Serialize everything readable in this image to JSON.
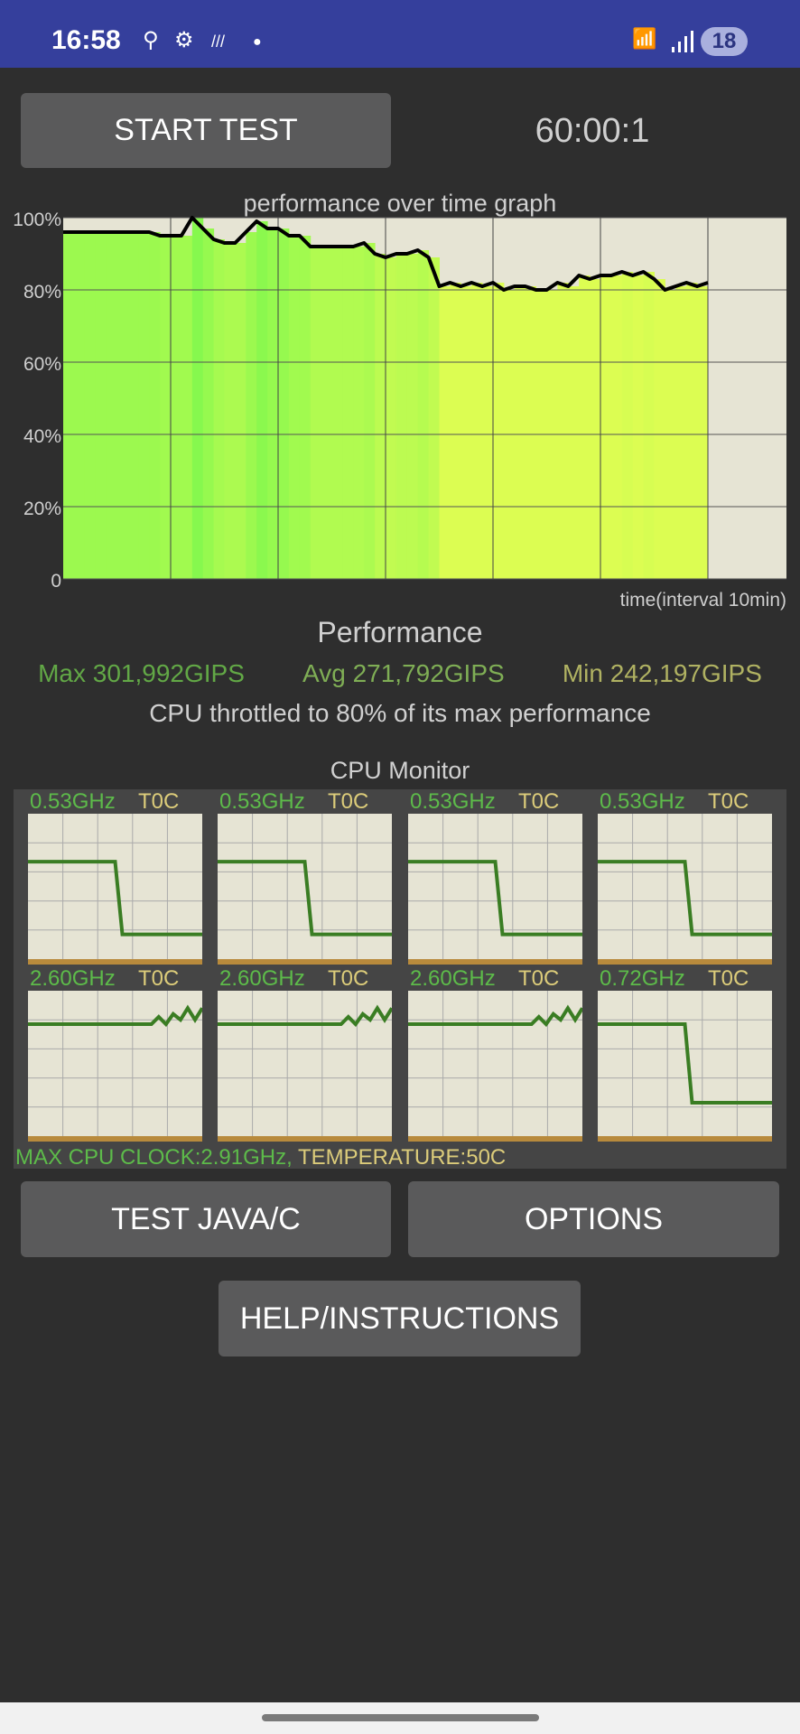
{
  "status_bar": {
    "time": "16:58",
    "icons_left": [
      "location-icon",
      "gear-icon",
      "stripes-icon",
      "dot-icon"
    ],
    "icons_right": [
      "wifi-6-icon",
      "signal-icon"
    ],
    "battery": "18",
    "color": "#353f9c"
  },
  "top": {
    "start_button": "START TEST",
    "timer": "60:00:1"
  },
  "chart_data": {
    "type": "area",
    "title": "performance over time graph",
    "xlabel": "time(interval 10min)",
    "ylabel": "",
    "y_tick_labels": [
      "100%",
      "80%",
      "60%",
      "40%",
      "20%",
      "0"
    ],
    "ylim": [
      0,
      100
    ],
    "xlim_minutes": [
      0,
      70
    ],
    "x_interval_minutes": 10,
    "grid": true,
    "colors": {
      "high": "#86f84e",
      "low": "#dcfd52",
      "background": "#e6e4d4",
      "line": "#000000"
    },
    "x": [
      0,
      1,
      2,
      3,
      4,
      5,
      6,
      7,
      8,
      9,
      10,
      11,
      12,
      13,
      14,
      15,
      16,
      17,
      18,
      19,
      20,
      21,
      22,
      23,
      24,
      25,
      26,
      27,
      28,
      29,
      30,
      31,
      32,
      33,
      34,
      35,
      36,
      37,
      38,
      39,
      40,
      41,
      42,
      43,
      44,
      45,
      46,
      47,
      48,
      49,
      50,
      51,
      52,
      53,
      54,
      55,
      56,
      57,
      58,
      59,
      60
    ],
    "values": [
      96,
      96,
      96,
      96,
      96,
      96,
      96,
      96,
      96,
      95,
      95,
      95,
      100,
      97,
      94,
      93,
      93,
      96,
      99,
      97,
      97,
      95,
      95,
      92,
      92,
      92,
      92,
      92,
      93,
      90,
      89,
      90,
      90,
      91,
      89,
      81,
      82,
      81,
      82,
      81,
      82,
      80,
      81,
      81,
      80,
      80,
      82,
      81,
      84,
      83,
      84,
      84,
      85,
      84,
      85,
      83,
      80,
      81,
      82,
      81,
      82
    ]
  },
  "performance": {
    "heading": "Performance",
    "max": "Max 301,992GIPS",
    "avg": "Avg 271,792GIPS",
    "min": "Min 242,197GIPS",
    "throttle": "CPU throttled to 80% of its max performance",
    "colors": {
      "max": "#62a846",
      "avg": "#7fae55",
      "min": "#b0b262"
    }
  },
  "cpu_monitor": {
    "title": "CPU Monitor",
    "cores": [
      {
        "freq": "0.53GHz",
        "temp": "T0C",
        "history": [
          0.67,
          0.67,
          0.67,
          0.67,
          0.67,
          0.67,
          0.67,
          0.67,
          0.67,
          0.67,
          0.67,
          0.67,
          0.67,
          0.17,
          0.17,
          0.17,
          0.17,
          0.17,
          0.17,
          0.17,
          0.17,
          0.17,
          0.17,
          0.17,
          0.17
        ]
      },
      {
        "freq": "0.53GHz",
        "temp": "T0C",
        "history": [
          0.67,
          0.67,
          0.67,
          0.67,
          0.67,
          0.67,
          0.67,
          0.67,
          0.67,
          0.67,
          0.67,
          0.67,
          0.67,
          0.17,
          0.17,
          0.17,
          0.17,
          0.17,
          0.17,
          0.17,
          0.17,
          0.17,
          0.17,
          0.17,
          0.17
        ]
      },
      {
        "freq": "0.53GHz",
        "temp": "T0C",
        "history": [
          0.67,
          0.67,
          0.67,
          0.67,
          0.67,
          0.67,
          0.67,
          0.67,
          0.67,
          0.67,
          0.67,
          0.67,
          0.67,
          0.17,
          0.17,
          0.17,
          0.17,
          0.17,
          0.17,
          0.17,
          0.17,
          0.17,
          0.17,
          0.17,
          0.17
        ]
      },
      {
        "freq": "0.53GHz",
        "temp": "T0C",
        "history": [
          0.67,
          0.67,
          0.67,
          0.67,
          0.67,
          0.67,
          0.67,
          0.67,
          0.67,
          0.67,
          0.67,
          0.67,
          0.67,
          0.17,
          0.17,
          0.17,
          0.17,
          0.17,
          0.17,
          0.17,
          0.17,
          0.17,
          0.17,
          0.17,
          0.17
        ]
      },
      {
        "freq": "2.60GHz",
        "temp": "T0C",
        "history": [
          0.77,
          0.77,
          0.77,
          0.77,
          0.77,
          0.77,
          0.77,
          0.77,
          0.77,
          0.77,
          0.77,
          0.77,
          0.77,
          0.77,
          0.77,
          0.77,
          0.77,
          0.77,
          0.82,
          0.77,
          0.84,
          0.8,
          0.88,
          0.8,
          0.88
        ]
      },
      {
        "freq": "2.60GHz",
        "temp": "T0C",
        "history": [
          0.77,
          0.77,
          0.77,
          0.77,
          0.77,
          0.77,
          0.77,
          0.77,
          0.77,
          0.77,
          0.77,
          0.77,
          0.77,
          0.77,
          0.77,
          0.77,
          0.77,
          0.77,
          0.82,
          0.77,
          0.84,
          0.8,
          0.88,
          0.8,
          0.88
        ]
      },
      {
        "freq": "2.60GHz",
        "temp": "T0C",
        "history": [
          0.77,
          0.77,
          0.77,
          0.77,
          0.77,
          0.77,
          0.77,
          0.77,
          0.77,
          0.77,
          0.77,
          0.77,
          0.77,
          0.77,
          0.77,
          0.77,
          0.77,
          0.77,
          0.82,
          0.77,
          0.84,
          0.8,
          0.88,
          0.8,
          0.88
        ]
      },
      {
        "freq": "0.72GHz",
        "temp": "T0C",
        "history": [
          0.77,
          0.77,
          0.77,
          0.77,
          0.77,
          0.77,
          0.77,
          0.77,
          0.77,
          0.77,
          0.77,
          0.77,
          0.77,
          0.23,
          0.23,
          0.23,
          0.23,
          0.23,
          0.23,
          0.23,
          0.23,
          0.23,
          0.23,
          0.23,
          0.23
        ]
      }
    ],
    "footer_clock": "MAX CPU CLOCK:2.91GHz,",
    "footer_temp": "TEMPERATURE:50C"
  },
  "buttons": {
    "test_java": "TEST JAVA/C",
    "options": "OPTIONS",
    "help": "HELP/INSTRUCTIONS"
  }
}
